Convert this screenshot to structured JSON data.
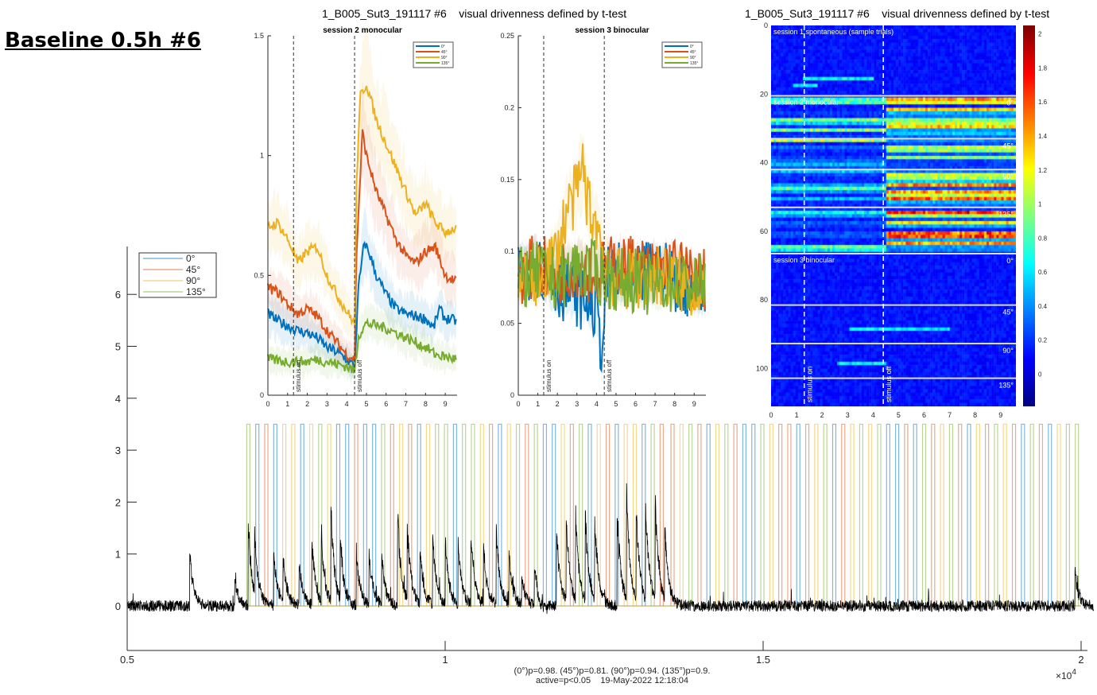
{
  "header": {
    "title": "Baseline 0.5h #6",
    "suptitle_left": "1_B005_Sut3_191117 #6    visual drivenness defined by t-test",
    "suptitle_right": "1_B005_Sut3_191117 #6    visual drivenness defined by t-test"
  },
  "footer": {
    "line1": "(0°)p=0.98. (45°)p=0.81. (90°)p=0.94. (135°)p=0.9.",
    "line2": "active=p<0.05    19-May-2022 12:18:04"
  },
  "colors": {
    "0°": "#0072BD",
    "45°": "#D95319",
    "90°": "#EDB120",
    "135°": "#77AC30"
  },
  "chart_data": [
    {
      "type": "line",
      "title": "session 2 monocular",
      "xlim": [
        0,
        9.6
      ],
      "ylim": [
        0,
        1.5
      ],
      "xticks": [
        "0",
        "1",
        "2",
        "3",
        "4",
        "5",
        "6",
        "7",
        "8",
        "9"
      ],
      "yticks": [
        "0",
        "0.5",
        "1",
        "1.5"
      ],
      "annotations": [
        {
          "x": 1.3,
          "text": "stimulus on"
        },
        {
          "x": 4.4,
          "text": "stimulus off"
        }
      ],
      "legend": "top-right",
      "series": [
        {
          "name": "0°",
          "x": [
            0,
            0.5,
            1,
            1.5,
            2,
            2.5,
            3,
            3.5,
            4,
            4.4,
            4.6,
            4.9,
            5.2,
            5.5,
            6,
            6.5,
            7,
            7.5,
            8,
            8.4,
            8.7,
            9,
            9.6
          ],
          "y": [
            0.34,
            0.31,
            0.29,
            0.27,
            0.26,
            0.24,
            0.2,
            0.18,
            0.15,
            0.12,
            0.45,
            0.64,
            0.58,
            0.5,
            0.42,
            0.36,
            0.34,
            0.33,
            0.32,
            0.28,
            0.36,
            0.32,
            0.31
          ]
        },
        {
          "name": "45°",
          "x": [
            0,
            0.5,
            1,
            1.5,
            2,
            2.5,
            3,
            3.5,
            4,
            4.4,
            4.5,
            4.8,
            5,
            5.5,
            6,
            6.5,
            7,
            7.5,
            8,
            8.5,
            9,
            9.6
          ],
          "y": [
            0.45,
            0.43,
            0.38,
            0.34,
            0.36,
            0.33,
            0.27,
            0.22,
            0.17,
            0.15,
            0.6,
            1.1,
            1.0,
            0.85,
            0.75,
            0.65,
            0.58,
            0.55,
            0.6,
            0.62,
            0.5,
            0.47
          ]
        },
        {
          "name": "90°",
          "x": [
            0,
            0.5,
            1,
            1.3,
            1.5,
            2,
            2.5,
            3,
            3.5,
            4,
            4.4,
            4.5,
            4.7,
            5,
            5.5,
            6,
            6.5,
            7,
            7.5,
            8,
            8.5,
            9,
            9.6
          ],
          "y": [
            0.7,
            0.72,
            0.65,
            0.6,
            0.55,
            0.6,
            0.62,
            0.5,
            0.42,
            0.35,
            0.3,
            0.9,
            1.25,
            1.3,
            1.15,
            1.05,
            0.95,
            0.85,
            0.75,
            0.8,
            0.72,
            0.68,
            0.7
          ]
        },
        {
          "name": "135°",
          "x": [
            0,
            1,
            2,
            2.5,
            3,
            4,
            4.4,
            4.6,
            5,
            5.5,
            6,
            7,
            8,
            8.5,
            9,
            9.6
          ],
          "y": [
            0.15,
            0.14,
            0.14,
            0.15,
            0.14,
            0.12,
            0.1,
            0.25,
            0.3,
            0.29,
            0.28,
            0.24,
            0.2,
            0.17,
            0.16,
            0.15
          ]
        }
      ]
    },
    {
      "type": "line",
      "title": "session 3 binocular",
      "xlim": [
        0,
        9.6
      ],
      "ylim": [
        0,
        0.25
      ],
      "xticks": [
        "0",
        "1",
        "2",
        "3",
        "4",
        "5",
        "6",
        "7",
        "8",
        "9"
      ],
      "yticks": [
        "0",
        "0.05",
        "0.1",
        "0.15",
        "0.2",
        "0.25"
      ],
      "annotations": [
        {
          "x": 1.3,
          "text": "stimulus on"
        },
        {
          "x": 4.4,
          "text": "stimulus off"
        }
      ],
      "legend": "top-right",
      "series": [
        {
          "name": "0°",
          "x": [
            0,
            1,
            2,
            3,
            4,
            4.3,
            4.5,
            5,
            6,
            7,
            8,
            9,
            9.6
          ],
          "y": [
            0.085,
            0.09,
            0.075,
            0.07,
            0.06,
            0.03,
            0.08,
            0.085,
            0.08,
            0.09,
            0.08,
            0.075,
            0.07
          ]
        },
        {
          "name": "45°",
          "x": [
            0,
            1,
            2,
            3,
            4,
            5,
            6,
            7,
            8,
            9,
            9.6
          ],
          "y": [
            0.085,
            0.09,
            0.085,
            0.09,
            0.085,
            0.09,
            0.09,
            0.085,
            0.09,
            0.08,
            0.08
          ]
        },
        {
          "name": "90°",
          "x": [
            0,
            1,
            2,
            2.5,
            3,
            3.3,
            3.6,
            4,
            4.5,
            5,
            6,
            7,
            8,
            9,
            9.6
          ],
          "y": [
            0.08,
            0.08,
            0.1,
            0.13,
            0.14,
            0.16,
            0.13,
            0.12,
            0.09,
            0.08,
            0.08,
            0.085,
            0.08,
            0.075,
            0.08
          ]
        },
        {
          "name": "135°",
          "x": [
            0,
            1,
            2,
            3,
            4,
            5,
            6,
            7,
            8,
            9,
            9.6
          ],
          "y": [
            0.08,
            0.085,
            0.08,
            0.09,
            0.085,
            0.08,
            0.08,
            0.075,
            0.08,
            0.075,
            0.08
          ]
        }
      ]
    },
    {
      "type": "heatmap",
      "xlim": [
        0,
        9.6
      ],
      "ylim": [
        0,
        111
      ],
      "xticks": [
        "0",
        "1",
        "2",
        "3",
        "4",
        "5",
        "6",
        "7",
        "8",
        "9"
      ],
      "yticks": [
        "0",
        "20",
        "40",
        "60",
        "80",
        "100"
      ],
      "colorbar": {
        "range": [
          -0.19,
          2.05
        ],
        "ticks": [
          "0",
          "0.2",
          "0.4",
          "0.6",
          "0.8",
          "1",
          "1.2",
          "1.4",
          "1.6",
          "1.8",
          "2"
        ],
        "colormap": "jet"
      },
      "sections": [
        {
          "label": "session 1 spontaneous (sample trials)",
          "rows": [
            0,
            20.5
          ]
        },
        {
          "label": "session 2 monocular",
          "rows": [
            20.5,
            66.5
          ],
          "groups": [
            {
              "label": "0°",
              "rows": [
                20.5,
                33
              ]
            },
            {
              "label": "45°",
              "rows": [
                33,
                42
              ]
            },
            {
              "label": "90°",
              "rows": [
                42,
                53
              ]
            },
            {
              "label": "135°",
              "rows": [
                53,
                66.5
              ]
            }
          ]
        },
        {
          "label": "session 3 binocular",
          "rows": [
            66.5,
            111
          ],
          "groups": [
            {
              "label": "0°",
              "rows": [
                66.5,
                81.5
              ]
            },
            {
              "label": "45°",
              "rows": [
                81.5,
                92.7
              ]
            },
            {
              "label": "90°",
              "rows": [
                92.7,
                102.8
              ]
            },
            {
              "label": "135°",
              "rows": [
                102.8,
                111
              ]
            }
          ]
        }
      ],
      "annotations": [
        {
          "x": 1.3,
          "text": "stimulus on"
        },
        {
          "x": 4.4,
          "text": "stimulus off"
        }
      ]
    },
    {
      "type": "line",
      "xlim": [
        0.5,
        2.0
      ],
      "ylim": [
        -0.9,
        6.9
      ],
      "x_multiplier": "×10",
      "x_multiplier_exp": "4",
      "xticks": [
        "0.5",
        "1",
        "1.5",
        "2"
      ],
      "yticks": [
        "0",
        "1",
        "2",
        "3",
        "4",
        "5",
        "6"
      ],
      "legend": "top-left",
      "legend_entries": [
        "0°",
        "45°",
        "90°",
        "135°"
      ],
      "stimulus_height": 3.5,
      "stimulus_segments": [
        [
          0.688,
          1.35
        ],
        [
          1.355,
          2.0
        ]
      ],
      "stimulus_sequence": [
        3,
        0,
        1,
        0,
        2,
        2,
        0,
        2,
        3,
        2,
        0,
        0,
        1,
        0,
        0,
        3,
        1,
        2,
        1,
        0,
        2,
        3,
        3,
        0,
        3,
        3,
        2,
        1,
        0,
        2,
        3,
        1,
        3,
        0,
        0,
        2,
        1,
        3,
        0,
        2,
        1,
        0,
        2,
        2,
        0,
        3,
        1,
        1,
        2,
        3,
        1,
        0,
        2,
        3,
        1,
        0,
        0,
        3,
        2,
        1,
        1,
        0,
        1,
        2,
        3,
        0,
        1,
        2,
        3,
        2,
        3,
        0,
        0,
        1,
        0,
        3,
        1,
        2,
        3,
        1,
        0,
        2,
        1,
        3,
        2,
        1,
        0,
        3,
        1,
        0,
        2,
        3
      ],
      "peaks": [
        [
          0.598,
          1.1
        ],
        [
          0.669,
          0.5
        ],
        [
          0.69,
          1.6
        ],
        [
          0.7,
          1.2
        ],
        [
          0.73,
          1.1
        ],
        [
          0.745,
          0.9
        ],
        [
          0.77,
          0.9
        ],
        [
          0.79,
          1.4
        ],
        [
          0.805,
          1.3
        ],
        [
          0.82,
          1.8
        ],
        [
          0.835,
          1.2
        ],
        [
          0.86,
          1.1
        ],
        [
          0.88,
          1.1
        ],
        [
          0.9,
          0.9
        ],
        [
          0.925,
          1.8
        ],
        [
          0.94,
          1.5
        ],
        [
          0.96,
          1.1
        ],
        [
          0.98,
          1.4
        ],
        [
          1.0,
          1.3
        ],
        [
          1.02,
          1.2
        ],
        [
          1.04,
          1.4
        ],
        [
          1.06,
          1.1
        ],
        [
          1.08,
          1.5
        ],
        [
          1.1,
          1.0
        ],
        [
          1.12,
          0.6
        ],
        [
          1.14,
          0.8
        ],
        [
          1.175,
          1.5
        ],
        [
          1.19,
          1.7
        ],
        [
          1.205,
          1.6
        ],
        [
          1.22,
          1.7
        ],
        [
          1.235,
          1.5
        ],
        [
          1.27,
          1.9
        ],
        [
          1.285,
          2.0
        ],
        [
          1.3,
          1.8
        ],
        [
          1.315,
          1.9
        ],
        [
          1.33,
          2.0
        ],
        [
          1.345,
          1.4
        ],
        [
          1.99,
          0.7
        ]
      ]
    }
  ]
}
